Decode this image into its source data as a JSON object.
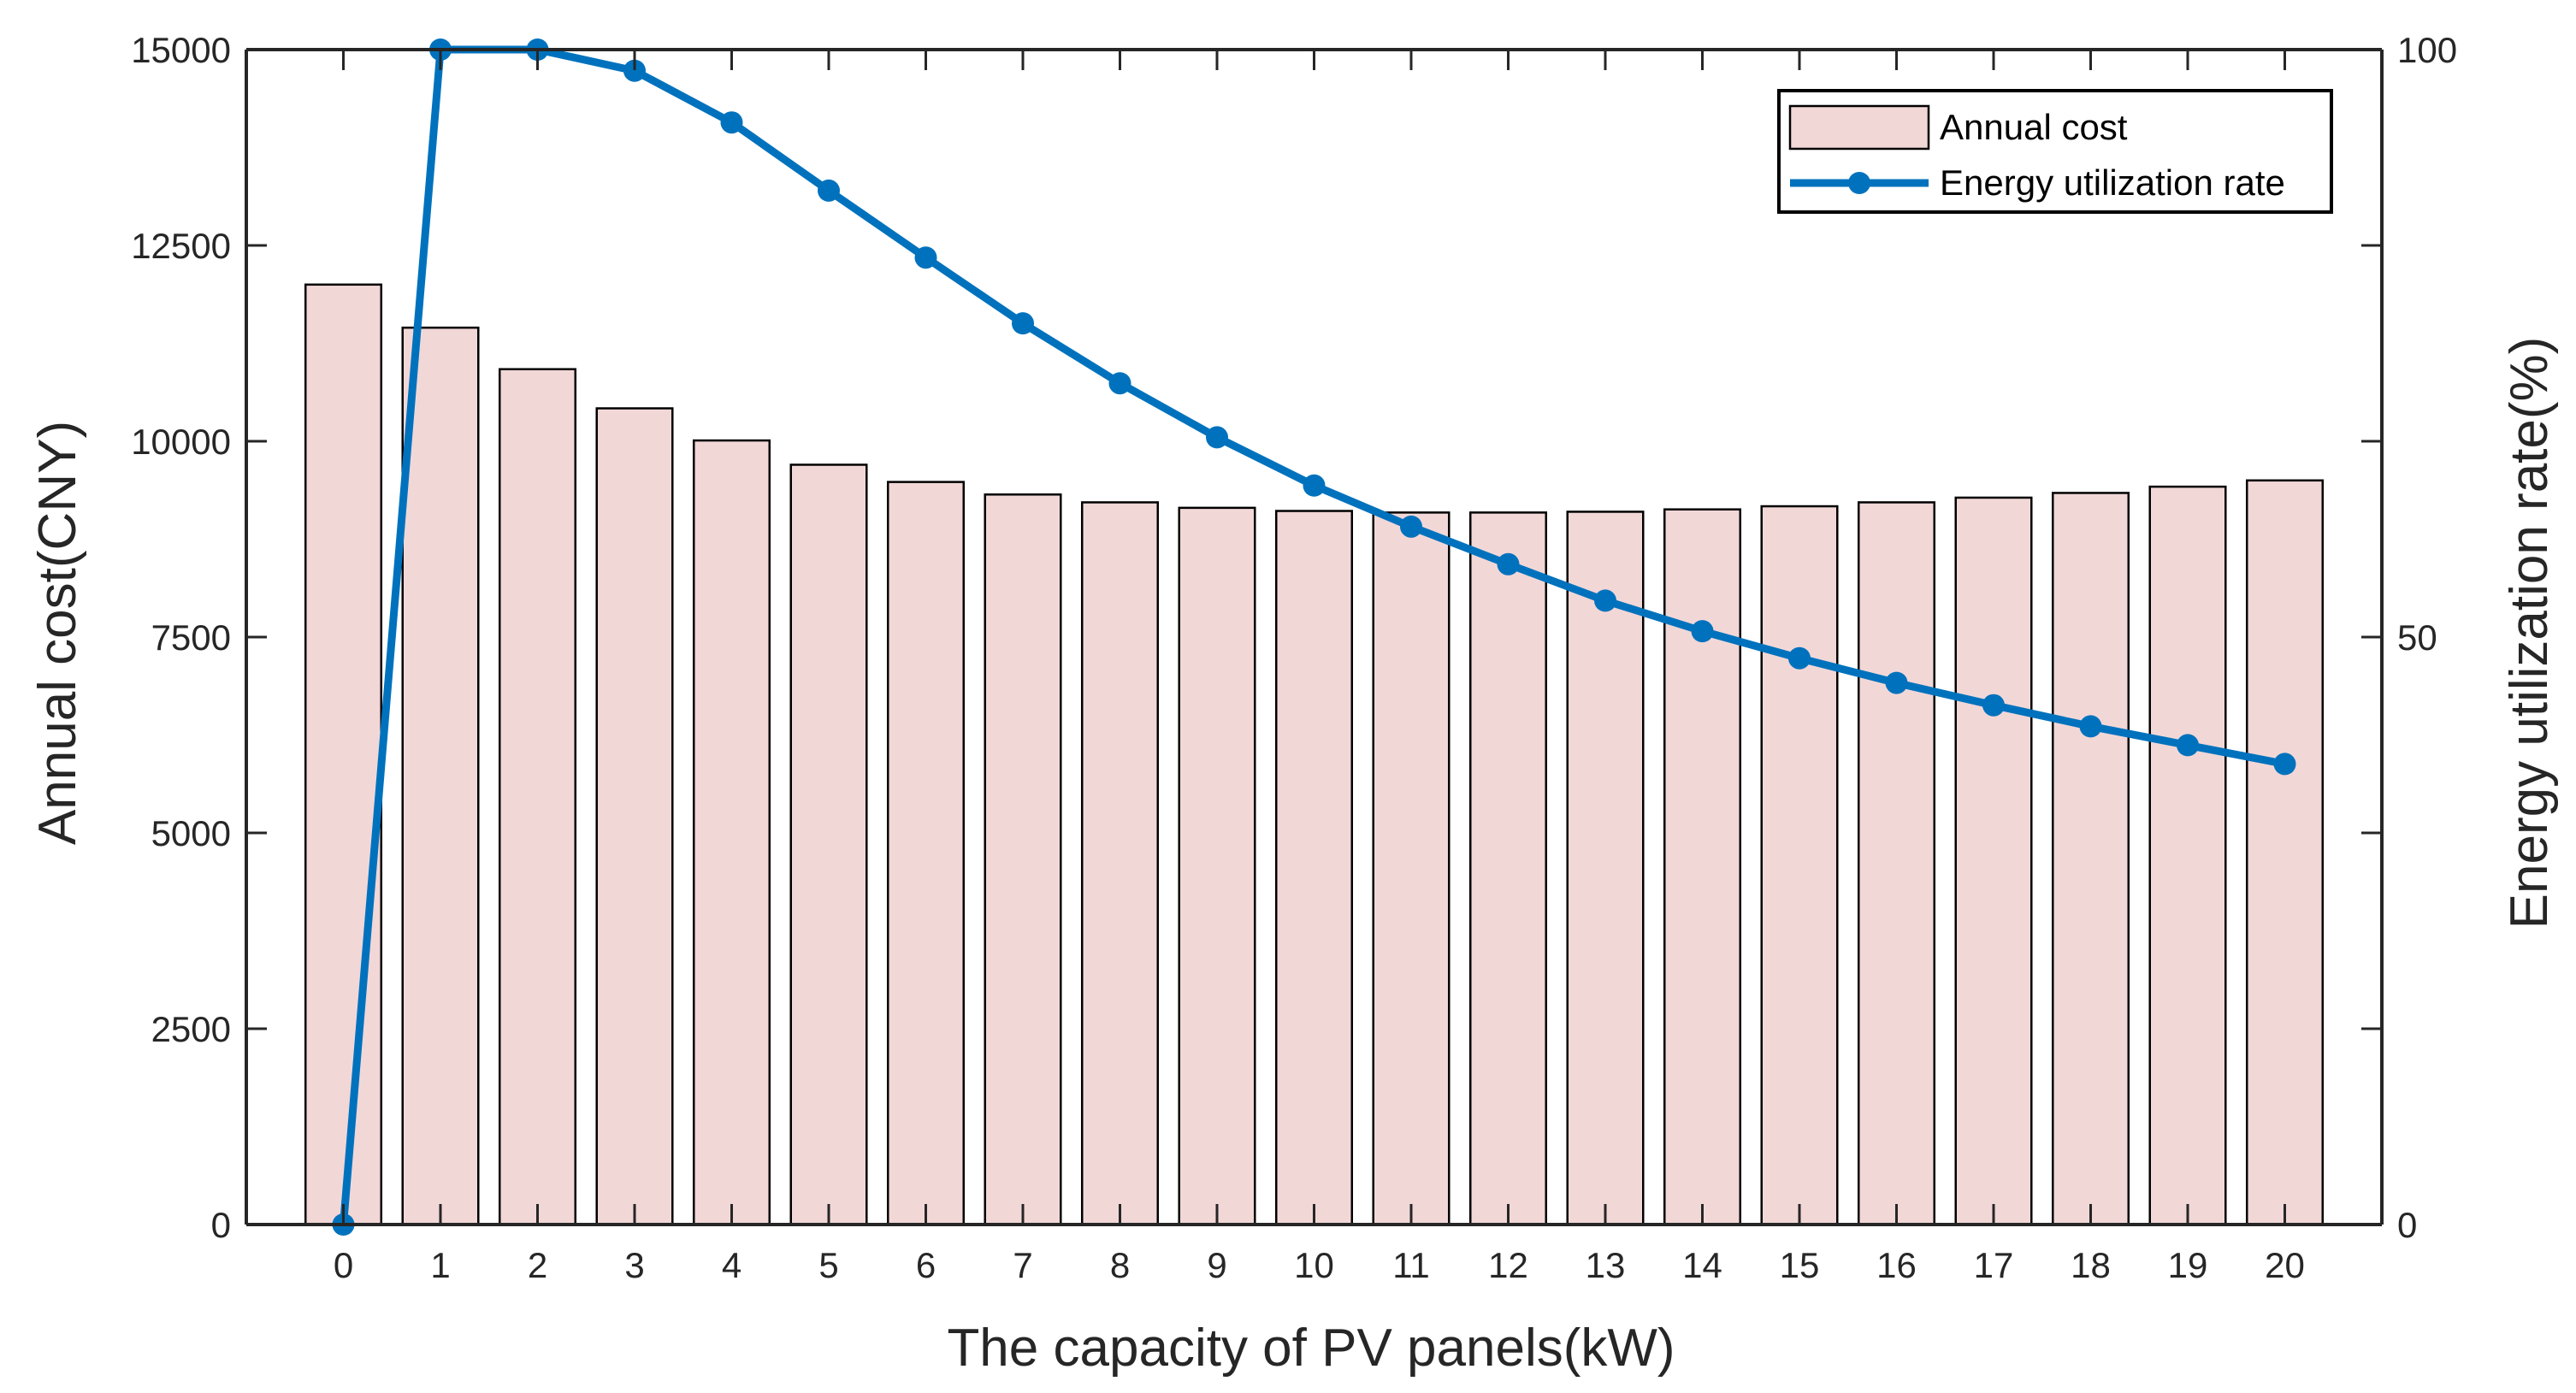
{
  "chart_data": {
    "type": "bar+line",
    "title": "",
    "xlabel": "The capacity of PV panels(kW)",
    "ylabel": "Annual cost(CNY)",
    "y2label": "Energy utilization rate(%)",
    "categories": [
      "0",
      "1",
      "2",
      "3",
      "4",
      "5",
      "6",
      "7",
      "8",
      "9",
      "10",
      "11",
      "12",
      "13",
      "14",
      "15",
      "16",
      "17",
      "18",
      "19",
      "20"
    ],
    "ylim": [
      0,
      15000
    ],
    "yticks": [
      0,
      2500,
      5000,
      7500,
      10000,
      12500,
      15000
    ],
    "ytick_labels": [
      "0",
      "2500",
      "5000",
      "7500",
      "10000",
      "12500",
      "15000"
    ],
    "y2lim": [
      0,
      100
    ],
    "y2ticks": [
      0,
      50,
      100
    ],
    "y2tick_labels": [
      "0",
      "50",
      "100"
    ],
    "legend_position": "top-right",
    "series": [
      {
        "name": "Annual cost",
        "kind": "bar",
        "axis": "left",
        "color": "#f2d7d7",
        "values": [
          12000,
          11450,
          10920,
          10420,
          10010,
          9700,
          9480,
          9320,
          9220,
          9150,
          9110,
          9090,
          9090,
          9100,
          9130,
          9170,
          9220,
          9280,
          9340,
          9420,
          9500
        ]
      },
      {
        "name": "Energy utilization rate",
        "kind": "line",
        "axis": "right",
        "color": "#0072bd",
        "values": [
          0,
          100,
          100,
          98.2,
          93.8,
          88.0,
          82.3,
          76.7,
          71.6,
          67.0,
          62.9,
          59.4,
          56.2,
          53.1,
          50.5,
          48.2,
          46.1,
          44.2,
          42.4,
          40.8,
          39.2
        ]
      }
    ]
  }
}
